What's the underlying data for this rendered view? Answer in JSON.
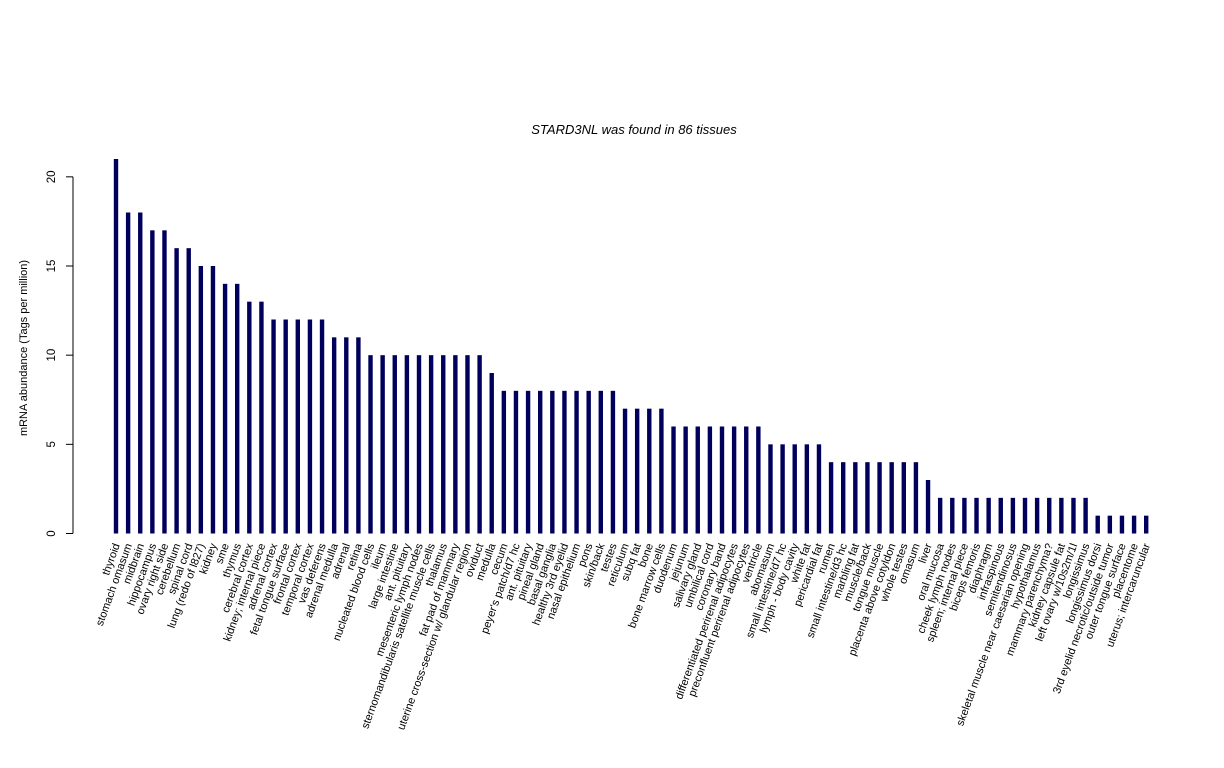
{
  "chart_data": {
    "type": "bar",
    "title": "STARD3NL  was found in  86  tissues",
    "xlabel": "",
    "ylabel": "mRNA abundance (Tags per million)",
    "ylim": [
      0,
      21
    ],
    "yticks": [
      0,
      5,
      10,
      15,
      20
    ],
    "grid": false,
    "categories": [
      "thyroid",
      "stomach omasum",
      "midbrain",
      "hippocampus",
      "ovary right side",
      "cerebellum",
      "spinal cord",
      "lung (redo of l827)",
      "kidney",
      "sme",
      "thymus",
      "cerebral cortex",
      "kidney; internal piece",
      "adrenal cortex",
      "fetal tongue surface",
      "frontal cortex",
      "temporal cortex",
      "vas deferens",
      "adrenal medulla",
      "adrenal",
      "retina",
      "nucleated blood cells",
      "ileum",
      "large intestine",
      "ant. pituitary",
      "mesenteric lymph nodes",
      "sternomandibularis satellite muscle cells",
      "thalamus",
      "fat pad of mammary",
      "uterine cross-section w/ glandular region",
      "oviduct",
      "medulla",
      "cecum",
      "peyer's patch/d7 hc",
      "ant. pituitary",
      "pineal gland",
      "basal ganglia",
      "healthy 3rd eyelid",
      "nasal epithelium",
      "pons",
      "skin/back",
      "testes",
      "reticulum",
      "subq fat",
      "bone",
      "bone marrow cells",
      "duodenum",
      "jejunum",
      "salivary gland",
      "umbilical cord",
      "coronary band",
      "differentiated perirenal adipocytes",
      "preconfluent perirenal adipocytes",
      "ventricle",
      "abomasum",
      "small intestine/d7 hc",
      "lymph - body cavity",
      "white fat",
      "pericardial fat",
      "rumen",
      "small intestine/d3 hc",
      "marbling fat",
      "muscle/back",
      "tongue muscle",
      "placenta above cotyldon",
      "whole testes",
      "omasum",
      "liver",
      "oral mucosa",
      "cheek lymph nodes",
      "spleen; internal piece",
      "biceps femoris",
      "diaphragm",
      "infraspinous",
      "semitendinosus",
      "skeletal muscle near caesarian opening",
      "hypothalamus",
      "mammary parenchyma?",
      "kidney capsule fat",
      "left ovary w/10s2m/1l",
      "longissimus",
      "longissimus dorsi",
      "3rd eyelid necrotic/outside tumor",
      "outer tongue surface",
      "placentome",
      "uterus; intercaruncular"
    ],
    "values": [
      21,
      18,
      18,
      17,
      17,
      16,
      16,
      15,
      15,
      14,
      14,
      13,
      13,
      12,
      12,
      12,
      12,
      12,
      11,
      11,
      11,
      10,
      10,
      10,
      10,
      10,
      10,
      10,
      10,
      10,
      10,
      9,
      8,
      8,
      8,
      8,
      8,
      8,
      8,
      8,
      8,
      8,
      7,
      7,
      7,
      7,
      6,
      6,
      6,
      6,
      6,
      6,
      6,
      6,
      5,
      5,
      5,
      5,
      5,
      4,
      4,
      4,
      4,
      4,
      4,
      4,
      4,
      3,
      2,
      2,
      2,
      2,
      2,
      2,
      2,
      2,
      2,
      2,
      2,
      2,
      2,
      1,
      1,
      1,
      1,
      1
    ],
    "colors": {
      "bar": "#00005c",
      "axis": "#000000",
      "background": "#ffffff"
    }
  }
}
